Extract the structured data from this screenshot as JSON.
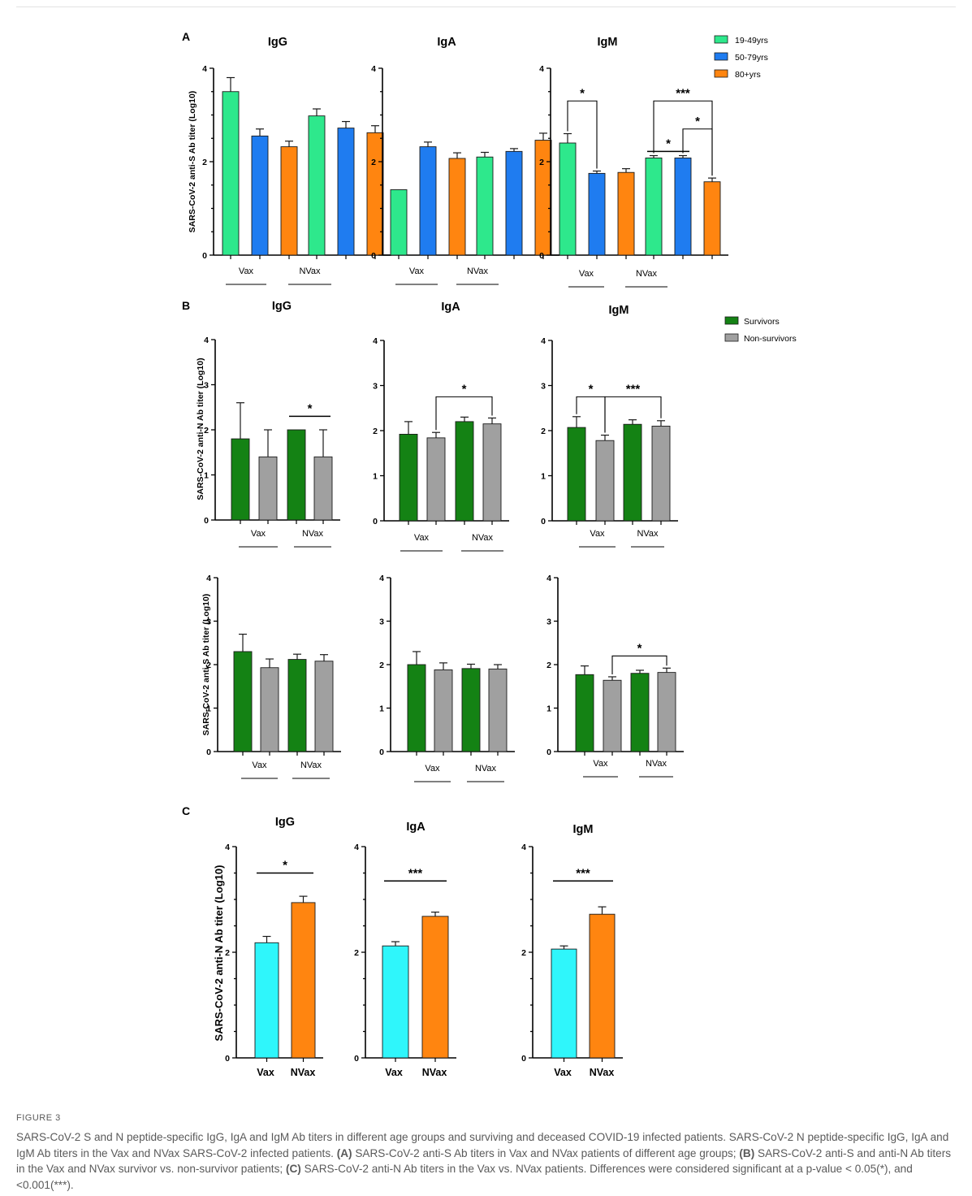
{
  "figure": {
    "panel_labels": [
      "A",
      "B",
      "C"
    ],
    "colors": {
      "age_19_49": "#2ee88c",
      "age_50_79": "#1f7cf0",
      "age_80_plus": "#ff8510",
      "survivors": "#148214",
      "non_survivors": "#a0a0a0",
      "vax": "#2ff6fb",
      "nvax": "#ff8510"
    },
    "panel_A": {
      "ylabel": "SARS-CoV-2 anti-S Ab titer (Log10)",
      "legend": [
        "19-49yrs",
        "50-79yrs",
        "80+yrs"
      ],
      "group_labels": [
        "Vax",
        "NVax"
      ]
    },
    "panel_B": {
      "ylabel_top": "SARS-CoV-2 anti-N Ab titer (Log10)",
      "ylabel_bottom": "SARS-CoV-2 anti-S Ab titer (Log10)",
      "legend": [
        "Survivors",
        "Non-survivors"
      ],
      "group_labels": [
        "Vax",
        "NVax"
      ]
    },
    "panel_C": {
      "ylabel": "SARS-CoV-2 anti-N Ab titer (Log10)",
      "categories": [
        "Vax",
        "NVax"
      ]
    }
  },
  "chart_data": [
    {
      "id": "A-IgG",
      "type": "bar",
      "title": "IgG",
      "ylim": [
        0,
        4
      ],
      "yticks": [
        "0",
        "2",
        "4"
      ],
      "categories": [
        "Vax 19-49yrs",
        "Vax 50-79yrs",
        "Vax 80+yrs",
        "NVax 19-49yrs",
        "NVax 50-79yrs",
        "NVax 80+yrs"
      ],
      "values": [
        3.5,
        2.55,
        2.32,
        2.98,
        2.72,
        2.62
      ],
      "errors": [
        0.3,
        0.15,
        0.12,
        0.15,
        0.14,
        0.15
      ],
      "color_keys": [
        "age_19_49",
        "age_50_79",
        "age_80_plus",
        "age_19_49",
        "age_50_79",
        "age_80_plus"
      ],
      "sig": []
    },
    {
      "id": "A-IgA",
      "type": "bar",
      "title": "IgA",
      "ylim": [
        0,
        4
      ],
      "yticks": [
        "0",
        "2",
        "4"
      ],
      "categories": [
        "Vax 19-49yrs",
        "Vax 50-79yrs",
        "Vax 80+yrs",
        "NVax 19-49yrs",
        "NVax 50-79yrs",
        "NVax 80+yrs"
      ],
      "values": [
        1.4,
        2.32,
        2.07,
        2.1,
        2.22,
        2.46
      ],
      "errors": [
        0,
        0.1,
        0.12,
        0.1,
        0.06,
        0.15
      ],
      "color_keys": [
        "age_19_49",
        "age_50_79",
        "age_80_plus",
        "age_19_49",
        "age_50_79",
        "age_80_plus"
      ],
      "sig": []
    },
    {
      "id": "A-IgM",
      "type": "bar",
      "title": "IgM",
      "ylim": [
        0,
        4
      ],
      "yticks": [
        "0",
        "2",
        "4"
      ],
      "categories": [
        "Vax 19-49yrs",
        "Vax 50-79yrs",
        "Vax 80+yrs",
        "NVax 19-49yrs",
        "NVax 50-79yrs",
        "NVax 80+yrs"
      ],
      "values": [
        2.4,
        1.75,
        1.77,
        2.08,
        2.08,
        1.57
      ],
      "errors": [
        0.2,
        0.05,
        0.08,
        0.05,
        0.05,
        0.08
      ],
      "color_keys": [
        "age_19_49",
        "age_50_79",
        "age_80_plus",
        "age_19_49",
        "age_50_79",
        "age_80_plus"
      ],
      "sig": [
        {
          "from": 0,
          "to": 1,
          "label": "*",
          "y": 3.3,
          "style": "bracket"
        },
        {
          "from": 3,
          "to": 5,
          "label": "***",
          "y": 3.3,
          "style": "bracket"
        },
        {
          "from": 4,
          "to": 5,
          "label": "*",
          "y": 2.7,
          "style": "bracket"
        },
        {
          "from": 3,
          "to": 4,
          "label": "*",
          "y": 2.22,
          "style": "line"
        }
      ]
    },
    {
      "id": "B-N-IgG",
      "type": "bar",
      "title": "IgG",
      "ylim": [
        0,
        4
      ],
      "yticks": [
        "0",
        "1",
        "2",
        "3",
        "4"
      ],
      "categories": [
        "Vax Survivors",
        "Vax Non-survivors",
        "NVax Survivors",
        "NVax Non-survivors"
      ],
      "values": [
        1.8,
        1.4,
        2.0,
        1.4
      ],
      "errors": [
        0.8,
        0.6,
        0,
        0.6
      ],
      "color_keys": [
        "survivors",
        "non_survivors",
        "survivors",
        "non_survivors"
      ],
      "sig": [
        {
          "from": 2,
          "to": 3,
          "label": "*",
          "y": 2.3,
          "style": "line"
        }
      ]
    },
    {
      "id": "B-N-IgA",
      "type": "bar",
      "title": "IgA",
      "ylim": [
        0,
        4
      ],
      "yticks": [
        "0",
        "1",
        "2",
        "3",
        "4"
      ],
      "categories": [
        "Vax Survivors",
        "Vax Non-survivors",
        "NVax Survivors",
        "NVax Non-survivors"
      ],
      "values": [
        1.92,
        1.84,
        2.2,
        2.15
      ],
      "errors": [
        0.28,
        0.12,
        0.1,
        0.13
      ],
      "color_keys": [
        "survivors",
        "non_survivors",
        "survivors",
        "non_survivors"
      ],
      "sig": [
        {
          "from": 1,
          "to": 3,
          "label": "*",
          "y": 2.75,
          "style": "bracket"
        }
      ]
    },
    {
      "id": "B-N-IgM",
      "type": "bar",
      "title": "IgM",
      "ylim": [
        0,
        4
      ],
      "yticks": [
        "0",
        "1",
        "2",
        "3",
        "4"
      ],
      "categories": [
        "Vax Survivors",
        "Vax Non-survivors",
        "NVax Survivors",
        "NVax Non-survivors"
      ],
      "values": [
        2.07,
        1.78,
        2.14,
        2.1
      ],
      "errors": [
        0.24,
        0.12,
        0.1,
        0.12
      ],
      "color_keys": [
        "survivors",
        "non_survivors",
        "survivors",
        "non_survivors"
      ],
      "sig": [
        {
          "from": 0,
          "to": 1,
          "label": "*",
          "y": 2.75,
          "style": "bracket"
        },
        {
          "from": 1,
          "to": 3,
          "label": "***",
          "y": 2.75,
          "style": "bracket"
        }
      ]
    },
    {
      "id": "B-S-IgG",
      "type": "bar",
      "title": "",
      "ylim": [
        0,
        4
      ],
      "yticks": [
        "0",
        "1",
        "2",
        "3",
        "4"
      ],
      "categories": [
        "Vax Survivors",
        "Vax Non-survivors",
        "NVax Survivors",
        "NVax Non-survivors"
      ],
      "values": [
        2.3,
        1.93,
        2.12,
        2.08
      ],
      "errors": [
        0.4,
        0.2,
        0.12,
        0.15
      ],
      "color_keys": [
        "survivors",
        "non_survivors",
        "survivors",
        "non_survivors"
      ],
      "sig": []
    },
    {
      "id": "B-S-IgA",
      "type": "bar",
      "title": "",
      "ylim": [
        0,
        4
      ],
      "yticks": [
        "0",
        "1",
        "2",
        "3",
        "4"
      ],
      "categories": [
        "Vax Survivors",
        "Vax Non-survivors",
        "NVax Survivors",
        "NVax Non-survivors"
      ],
      "values": [
        2.0,
        1.88,
        1.91,
        1.9
      ],
      "errors": [
        0.3,
        0.16,
        0.1,
        0.1
      ],
      "color_keys": [
        "survivors",
        "non_survivors",
        "survivors",
        "non_survivors"
      ],
      "sig": []
    },
    {
      "id": "B-S-IgM",
      "type": "bar",
      "title": "",
      "ylim": [
        0,
        4
      ],
      "yticks": [
        "0",
        "1",
        "2",
        "3",
        "4"
      ],
      "categories": [
        "Vax Survivors",
        "Vax Non-survivors",
        "NVax Survivors",
        "NVax Non-survivors"
      ],
      "values": [
        1.77,
        1.64,
        1.8,
        1.82
      ],
      "errors": [
        0.2,
        0.08,
        0.07,
        0.1
      ],
      "color_keys": [
        "survivors",
        "non_survivors",
        "survivors",
        "non_survivors"
      ],
      "sig": [
        {
          "from": 1,
          "to": 3,
          "label": "*",
          "y": 2.2,
          "style": "bracket"
        }
      ]
    },
    {
      "id": "C-IgG",
      "type": "bar",
      "title": "IgG",
      "ylim": [
        0,
        4
      ],
      "yticks": [
        "0",
        "2",
        "4"
      ],
      "categories": [
        "Vax",
        "NVax"
      ],
      "values": [
        2.18,
        2.94
      ],
      "errors": [
        0.12,
        0.12
      ],
      "color_keys": [
        "vax",
        "nvax"
      ],
      "sig": [
        {
          "from": 0,
          "to": 1,
          "label": "*",
          "y": 3.5,
          "style": "line"
        }
      ]
    },
    {
      "id": "C-IgA",
      "type": "bar",
      "title": "IgA",
      "ylim": [
        0,
        4
      ],
      "yticks": [
        "0",
        "2",
        "4"
      ],
      "categories": [
        "Vax",
        "NVax"
      ],
      "values": [
        2.12,
        2.68
      ],
      "errors": [
        0.08,
        0.08
      ],
      "color_keys": [
        "vax",
        "nvax"
      ],
      "sig": [
        {
          "from": 0,
          "to": 1,
          "label": "***",
          "y": 3.35,
          "style": "line"
        }
      ]
    },
    {
      "id": "C-IgM",
      "type": "bar",
      "title": "IgM",
      "ylim": [
        0,
        4
      ],
      "yticks": [
        "0",
        "2",
        "4"
      ],
      "categories": [
        "Vax",
        "NVax"
      ],
      "values": [
        2.06,
        2.72
      ],
      "errors": [
        0.06,
        0.14
      ],
      "color_keys": [
        "vax",
        "nvax"
      ],
      "sig": [
        {
          "from": 0,
          "to": 1,
          "label": "***",
          "y": 3.35,
          "style": "line"
        }
      ]
    }
  ],
  "caption": {
    "label": "FIGURE 3",
    "line1": "SARS-CoV-2 S and N peptide-specific IgG, IgA and IgM Ab titers in different age groups and surviving and deceased COVID-19 infected patients. SARS-CoV-2 N peptide-specific IgG, IgA and IgM Ab titers in the Vax and NVax SARS-CoV-2 infected patients.",
    "a_label": "(A)",
    "a_text": "SARS-CoV-2 anti-S Ab titers in Vax and NVax patients of different age groups;",
    "b_label": "(B)",
    "b_text": "SARS-CoV-2 anti-S and anti-N Ab titers in the Vax and NVax survivor vs. non-survivor patients;",
    "c_label": "(C)",
    "c_text": "SARS-CoV-2 anti-N Ab titers in the Vax vs. NVax patients. Differences were considered significant at a p-value < 0.05(*), and <0.001(***)."
  }
}
